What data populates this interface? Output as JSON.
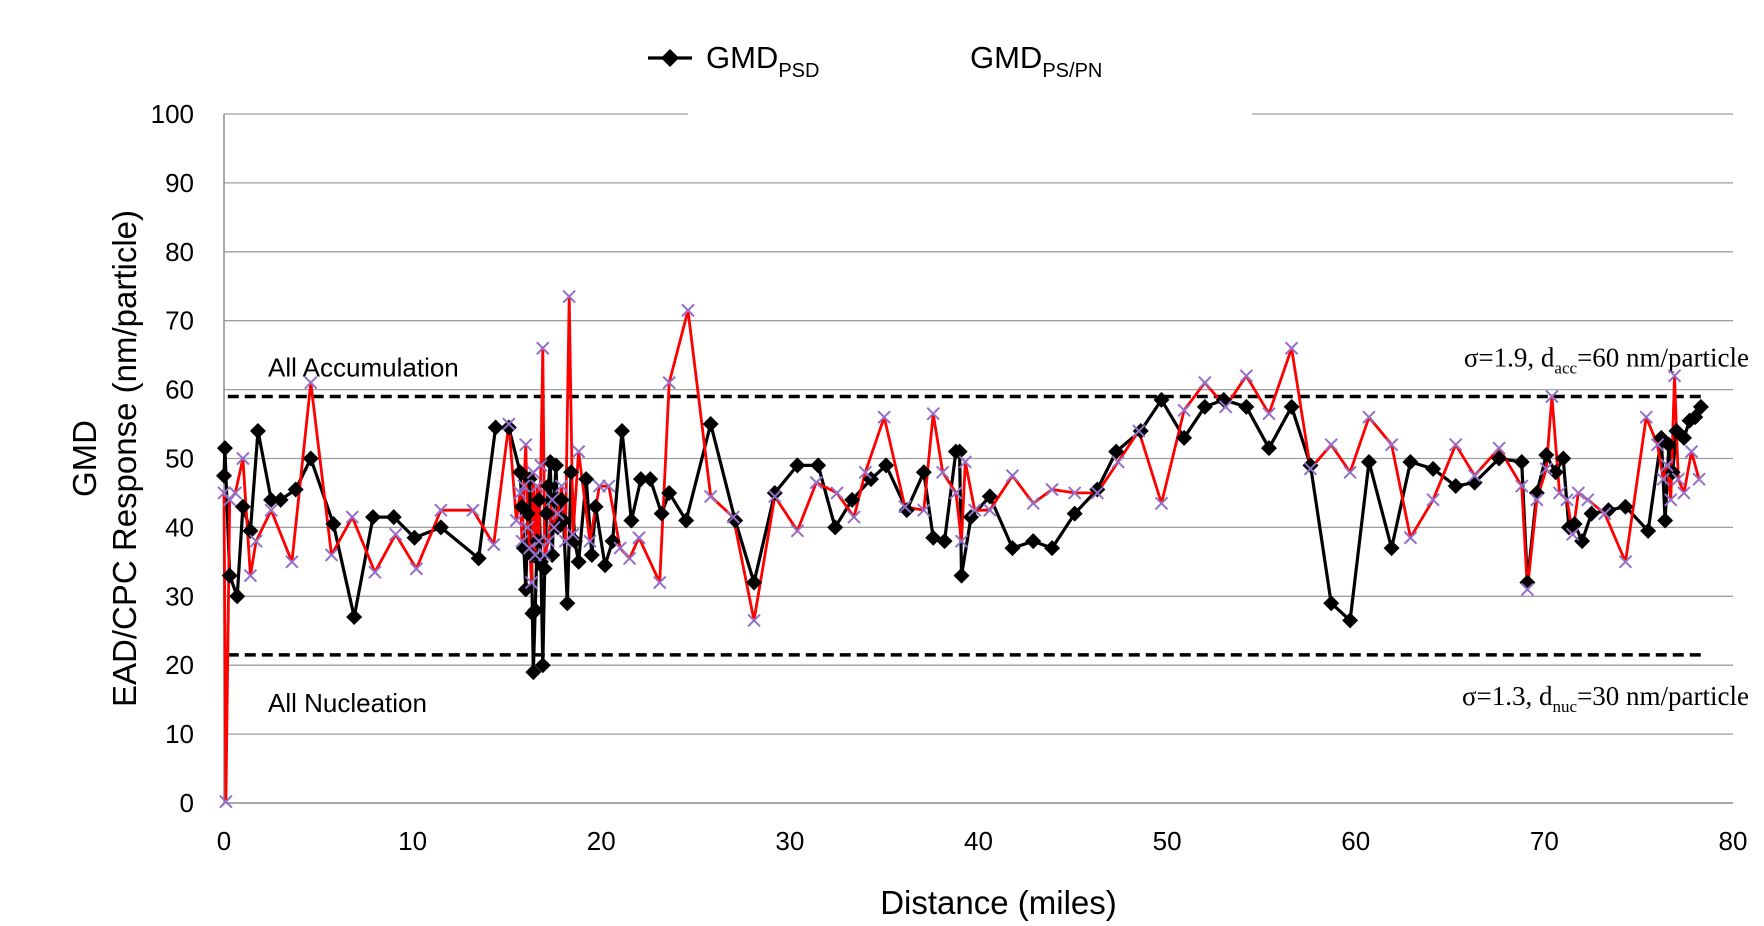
{
  "chart_data": {
    "type": "line",
    "xlabel": "Distance (miles)",
    "ylabel_lines": [
      "GMD",
      "EAD/CPC Response (nm/particle)"
    ],
    "xlim": [
      0,
      80
    ],
    "ylim": [
      0,
      100
    ],
    "x_ticks": [
      0,
      10,
      20,
      30,
      40,
      50,
      60,
      70,
      80
    ],
    "y_ticks": [
      0,
      10,
      20,
      30,
      40,
      50,
      60,
      70,
      80,
      90,
      100
    ],
    "grid": "horizontal",
    "legend_position": "top-center",
    "legend": [
      {
        "main": "GMD",
        "sub": "PSD"
      },
      {
        "main": "GMD",
        "sub": "PS/PN"
      }
    ],
    "reference_lines": [
      {
        "y": 59,
        "label": "All Accumulation",
        "note": {
          "prefix": "σ=1.9, d",
          "sub": "acc",
          "suffix": "=60 nm/particle"
        }
      },
      {
        "y": 21.5,
        "label": "All Nucleation",
        "note": {
          "prefix": "σ=1.3, d",
          "sub": "nuc",
          "suffix": "=30 nm/particle"
        }
      }
    ],
    "series": [
      {
        "color": "#000000",
        "marker": "diamond",
        "points": [
          [
            0.0,
            47.5
          ],
          [
            0.05,
            51.5
          ],
          [
            0.3,
            33
          ],
          [
            0.7,
            30
          ],
          [
            1.0,
            43
          ],
          [
            1.4,
            39.5
          ],
          [
            1.8,
            54
          ],
          [
            2.5,
            44
          ],
          [
            3.0,
            44
          ],
          [
            3.8,
            45.5
          ],
          [
            4.6,
            50
          ],
          [
            5.8,
            40.5
          ],
          [
            6.9,
            27
          ],
          [
            7.9,
            41.5
          ],
          [
            9.0,
            41.5
          ],
          [
            10.1,
            38.5
          ],
          [
            11.5,
            40
          ],
          [
            13.5,
            35.5
          ],
          [
            14.4,
            54.5
          ],
          [
            15.1,
            54.5
          ],
          [
            15.7,
            48
          ],
          [
            15.8,
            43
          ],
          [
            15.9,
            37
          ],
          [
            16.0,
            31
          ],
          [
            16.1,
            42
          ],
          [
            16.2,
            47
          ],
          [
            16.3,
            36
          ],
          [
            16.35,
            27.5
          ],
          [
            16.4,
            19
          ],
          [
            16.5,
            28
          ],
          [
            16.6,
            38
          ],
          [
            16.7,
            44
          ],
          [
            16.8,
            35
          ],
          [
            16.9,
            20
          ],
          [
            17.0,
            34
          ],
          [
            17.1,
            42
          ],
          [
            17.2,
            46
          ],
          [
            17.3,
            49.5
          ],
          [
            17.4,
            36
          ],
          [
            17.5,
            44
          ],
          [
            17.6,
            49
          ],
          [
            17.7,
            40
          ],
          [
            17.9,
            44
          ],
          [
            18.0,
            41
          ],
          [
            18.2,
            29
          ],
          [
            18.4,
            48
          ],
          [
            18.6,
            38
          ],
          [
            18.8,
            35
          ],
          [
            19.2,
            47
          ],
          [
            19.5,
            36
          ],
          [
            19.7,
            43
          ],
          [
            20.2,
            34.5
          ],
          [
            20.6,
            38
          ],
          [
            21.1,
            54
          ],
          [
            21.6,
            41
          ],
          [
            22.1,
            47
          ],
          [
            22.6,
            47
          ],
          [
            23.2,
            42
          ],
          [
            23.6,
            45
          ],
          [
            24.5,
            41
          ],
          [
            25.8,
            55
          ],
          [
            27.1,
            41
          ],
          [
            28.1,
            32
          ],
          [
            29.2,
            45
          ],
          [
            30.4,
            49
          ],
          [
            31.5,
            49
          ],
          [
            32.4,
            40
          ],
          [
            33.3,
            44
          ],
          [
            34.3,
            47
          ],
          [
            35.1,
            49
          ],
          [
            36.2,
            42.5
          ],
          [
            37.1,
            48
          ],
          [
            37.6,
            38.5
          ],
          [
            38.2,
            38
          ],
          [
            38.8,
            51
          ],
          [
            39.0,
            51
          ],
          [
            39.1,
            33
          ],
          [
            39.6,
            41.5
          ],
          [
            40.6,
            44.5
          ],
          [
            41.8,
            37
          ],
          [
            42.9,
            38
          ],
          [
            43.9,
            37
          ],
          [
            45.1,
            42
          ],
          [
            46.3,
            45.5
          ],
          [
            47.3,
            51
          ],
          [
            48.6,
            54
          ],
          [
            49.7,
            58.5
          ],
          [
            50.9,
            53
          ],
          [
            52.0,
            57.5
          ],
          [
            53.0,
            58.5
          ],
          [
            54.2,
            57.5
          ],
          [
            55.4,
            51.5
          ],
          [
            56.6,
            57.5
          ],
          [
            57.6,
            49
          ],
          [
            58.7,
            29
          ],
          [
            59.7,
            26.5
          ],
          [
            60.7,
            49.5
          ],
          [
            61.9,
            37
          ],
          [
            62.9,
            49.5
          ],
          [
            64.1,
            48.5
          ],
          [
            65.3,
            46
          ],
          [
            66.3,
            46.5
          ],
          [
            67.6,
            50
          ],
          [
            68.8,
            49.5
          ],
          [
            69.1,
            32
          ],
          [
            69.6,
            45
          ],
          [
            70.1,
            50.5
          ],
          [
            70.6,
            48
          ],
          [
            71.0,
            50
          ],
          [
            71.3,
            40
          ],
          [
            71.6,
            40.5
          ],
          [
            72.0,
            38
          ],
          [
            72.5,
            42
          ],
          [
            73.4,
            42.5
          ],
          [
            74.3,
            43
          ],
          [
            75.5,
            39.5
          ],
          [
            76.2,
            53
          ],
          [
            76.4,
            41
          ],
          [
            76.6,
            52
          ],
          [
            76.8,
            48
          ],
          [
            77.0,
            54
          ],
          [
            77.4,
            53
          ],
          [
            77.7,
            55.5
          ],
          [
            78.0,
            56
          ],
          [
            78.3,
            57.5
          ]
        ]
      },
      {
        "color": "#ff0000",
        "marker": "x",
        "marker_color": "#9370c8",
        "points": [
          [
            0.0,
            45
          ],
          [
            0.1,
            0.2
          ],
          [
            0.3,
            44
          ],
          [
            0.6,
            45
          ],
          [
            1.0,
            50
          ],
          [
            1.4,
            33
          ],
          [
            1.7,
            38
          ],
          [
            2.5,
            42.5
          ],
          [
            3.6,
            35
          ],
          [
            4.6,
            61
          ],
          [
            5.7,
            36
          ],
          [
            6.8,
            41.5
          ],
          [
            8.0,
            33.5
          ],
          [
            9.1,
            39
          ],
          [
            10.2,
            34
          ],
          [
            11.5,
            42.5
          ],
          [
            13.2,
            42.5
          ],
          [
            14.3,
            37.5
          ],
          [
            15.1,
            55
          ],
          [
            15.5,
            41
          ],
          [
            15.7,
            45
          ],
          [
            15.8,
            38
          ],
          [
            15.9,
            46
          ],
          [
            16.0,
            52
          ],
          [
            16.1,
            40
          ],
          [
            16.2,
            37
          ],
          [
            16.3,
            32
          ],
          [
            16.4,
            48
          ],
          [
            16.5,
            36
          ],
          [
            16.6,
            46
          ],
          [
            16.7,
            38
          ],
          [
            16.8,
            49
          ],
          [
            16.9,
            66
          ],
          [
            17.0,
            36
          ],
          [
            17.2,
            38
          ],
          [
            17.4,
            44
          ],
          [
            17.5,
            40
          ],
          [
            17.7,
            42
          ],
          [
            17.9,
            46
          ],
          [
            18.1,
            38
          ],
          [
            18.3,
            73.5
          ],
          [
            18.5,
            39
          ],
          [
            18.8,
            51
          ],
          [
            19.4,
            38
          ],
          [
            19.9,
            46
          ],
          [
            20.4,
            46
          ],
          [
            21.0,
            37
          ],
          [
            21.5,
            35.5
          ],
          [
            22.0,
            38.5
          ],
          [
            23.1,
            32
          ],
          [
            23.6,
            61
          ],
          [
            24.6,
            71.5
          ],
          [
            25.8,
            44.5
          ],
          [
            27.0,
            41.5
          ],
          [
            28.1,
            26.5
          ],
          [
            29.2,
            44.5
          ],
          [
            30.4,
            39.5
          ],
          [
            31.4,
            46.5
          ],
          [
            32.5,
            45
          ],
          [
            33.4,
            41.5
          ],
          [
            34.0,
            48
          ],
          [
            35.0,
            56
          ],
          [
            36.1,
            43
          ],
          [
            37.1,
            42.5
          ],
          [
            37.6,
            56.5
          ],
          [
            38.1,
            48
          ],
          [
            38.8,
            45
          ],
          [
            39.1,
            38
          ],
          [
            39.3,
            49.5
          ],
          [
            39.8,
            42.5
          ],
          [
            40.6,
            42.5
          ],
          [
            41.8,
            47.5
          ],
          [
            42.9,
            43.5
          ],
          [
            43.9,
            45.5
          ],
          [
            45.1,
            45
          ],
          [
            46.3,
            45
          ],
          [
            47.4,
            49.5
          ],
          [
            48.5,
            54
          ],
          [
            49.7,
            43.5
          ],
          [
            50.9,
            57
          ],
          [
            52.0,
            61
          ],
          [
            53.1,
            57.5
          ],
          [
            54.2,
            62
          ],
          [
            55.4,
            56.5
          ],
          [
            56.6,
            66
          ],
          [
            57.6,
            48.5
          ],
          [
            58.7,
            52
          ],
          [
            59.7,
            48
          ],
          [
            60.7,
            56
          ],
          [
            61.9,
            52
          ],
          [
            62.9,
            38.5
          ],
          [
            64.1,
            44
          ],
          [
            65.3,
            52
          ],
          [
            66.3,
            47.5
          ],
          [
            67.6,
            51.5
          ],
          [
            68.8,
            46
          ],
          [
            69.1,
            31
          ],
          [
            69.6,
            44
          ],
          [
            70.1,
            48.5
          ],
          [
            70.4,
            59
          ],
          [
            70.8,
            45
          ],
          [
            71.2,
            44
          ],
          [
            71.5,
            39
          ],
          [
            71.8,
            45
          ],
          [
            72.3,
            44
          ],
          [
            73.2,
            42
          ],
          [
            74.3,
            35
          ],
          [
            75.4,
            56
          ],
          [
            76.0,
            52
          ],
          [
            76.3,
            47
          ],
          [
            76.5,
            49
          ],
          [
            76.7,
            44
          ],
          [
            76.9,
            62
          ],
          [
            77.1,
            47
          ],
          [
            77.4,
            45
          ],
          [
            77.8,
            51
          ],
          [
            78.2,
            47
          ]
        ]
      }
    ]
  }
}
